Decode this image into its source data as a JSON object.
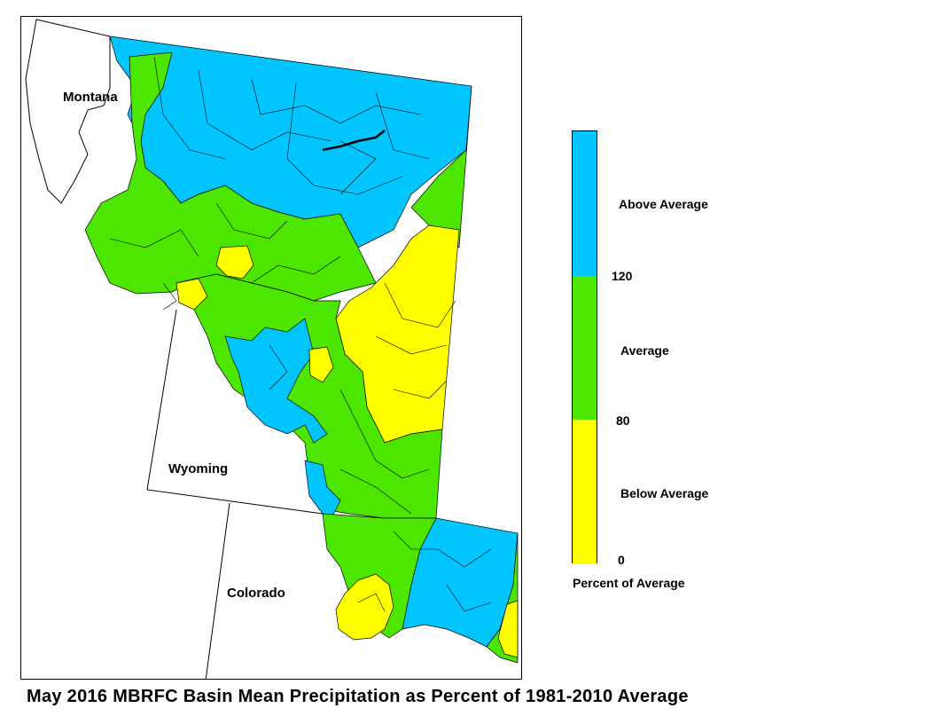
{
  "caption": "May 2016 MBRFC Basin Mean Precipitation as Percent of 1981-2010 Average",
  "states": {
    "montana": "Montana",
    "wyoming": "Wyoming",
    "colorado": "Colorado"
  },
  "legend": {
    "title": "Percent of Average",
    "categories": [
      {
        "label": "Above Average",
        "range": [
          120,
          null
        ],
        "color": "#00c5ff"
      },
      {
        "label": "Average",
        "range": [
          80,
          120
        ],
        "color": "#4ce600"
      },
      {
        "label": "Below Average",
        "range": [
          0,
          80
        ],
        "color": "#ffff00"
      }
    ],
    "breaks": [
      "120",
      "80",
      "0"
    ]
  },
  "colors": {
    "above": "#00c5ff",
    "average": "#4ce600",
    "below": "#ffff00",
    "outline": "#000000",
    "background": "#ffffff"
  }
}
